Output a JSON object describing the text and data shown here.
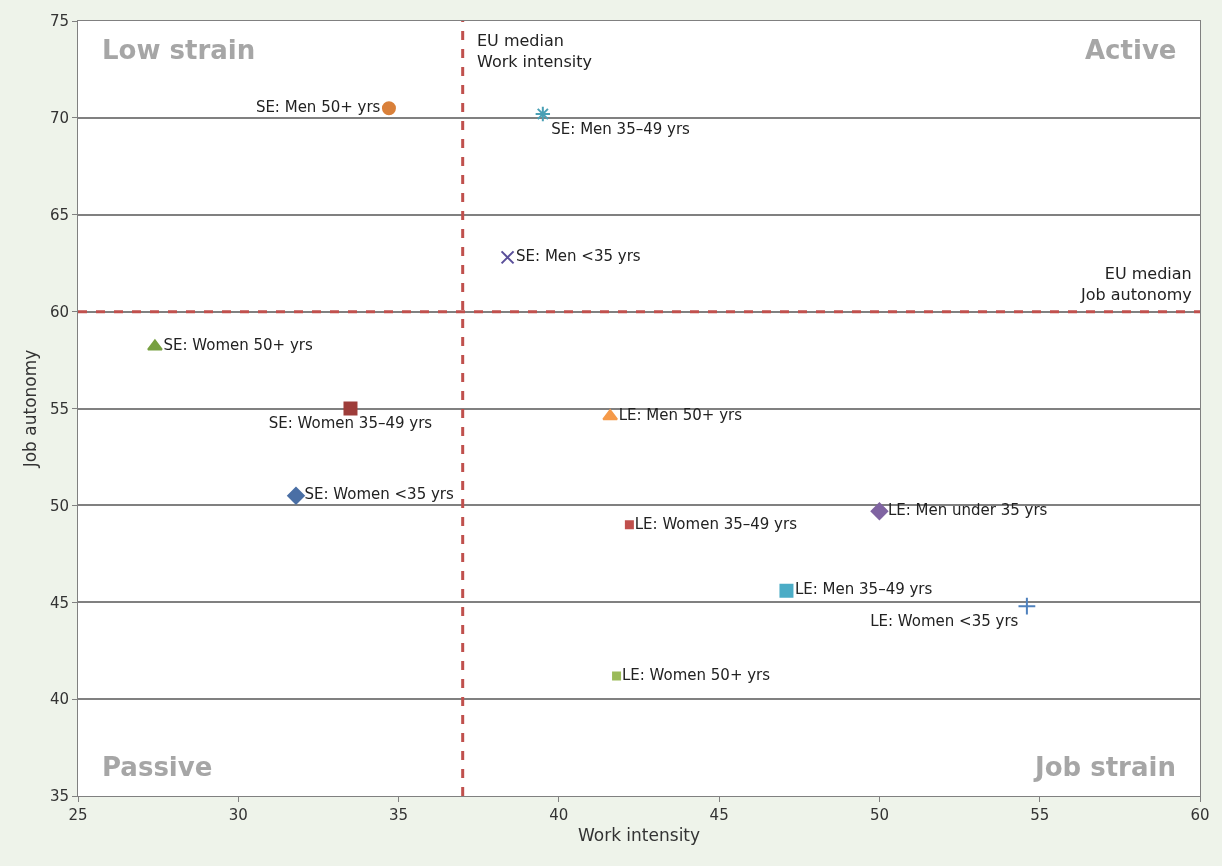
{
  "chart_data": {
    "type": "scatter",
    "xlabel": "Work intensity",
    "ylabel": "Job autonomy",
    "xlim": [
      25,
      60
    ],
    "xticks": [
      25,
      30,
      35,
      40,
      45,
      50,
      55,
      60
    ],
    "ylim": [
      35,
      75
    ],
    "yticks": [
      35,
      40,
      45,
      50,
      55,
      60,
      65,
      70,
      75
    ],
    "grid": "y",
    "legend": false,
    "series": [
      {
        "name": "SE: Men 50+ yrs",
        "color": "#d9803a",
        "marker": "circle",
        "x": [
          34.7
        ],
        "values": [
          70.5
        ]
      },
      {
        "name": "SE: Men 35–49 yrs",
        "color": "#4aa0b5",
        "marker": "cross",
        "x": [
          39.5
        ],
        "values": [
          70.2
        ]
      },
      {
        "name": "SE: Men <35 yrs",
        "color": "#5a4f9a",
        "marker": "cross",
        "x": [
          38.4
        ],
        "values": [
          62.8
        ]
      },
      {
        "name": "SE: Women 50+ yrs",
        "color": "#77a040",
        "marker": "triangle",
        "x": [
          27.4
        ],
        "values": [
          58.2
        ]
      },
      {
        "name": "SE: Women 35–49 yrs",
        "color": "#9e3d3a",
        "marker": "square",
        "x": [
          33.5
        ],
        "values": [
          55.0
        ]
      },
      {
        "name": "SE: Women <35 yrs",
        "color": "#4a6fa5",
        "marker": "diamond",
        "x": [
          31.8
        ],
        "values": [
          50.5
        ]
      },
      {
        "name": "LE: Men 50+ yrs",
        "color": "#f59a4a",
        "marker": "triangle",
        "x": [
          41.6
        ],
        "values": [
          54.6
        ]
      },
      {
        "name": "LE: Women 35–49 yrs",
        "color": "#c0504d",
        "marker": "square",
        "x": [
          42.2
        ],
        "values": [
          49.0
        ]
      },
      {
        "name": "LE: Men under 35 yrs",
        "color": "#8064a2",
        "marker": "diamond",
        "x": [
          50.0
        ],
        "values": [
          49.7
        ]
      },
      {
        "name": "LE: Men 35–49 yrs",
        "color": "#4bacc6",
        "marker": "square",
        "x": [
          47.1
        ],
        "values": [
          45.6
        ]
      },
      {
        "name": "LE: Women <35 yrs",
        "color": "#4f81bd",
        "marker": "cross",
        "x": [
          54.6
        ],
        "values": [
          44.8
        ]
      },
      {
        "name": "LE: Women 50+ yrs",
        "color": "#9bbb59",
        "marker": "square",
        "x": [
          41.8
        ],
        "values": [
          41.2
        ]
      }
    ],
    "ref_lines": [
      {
        "axis": "x",
        "value": 37.0,
        "label": "EU median\nWork intensity",
        "color": "#c0504d",
        "line_style": "dashed"
      },
      {
        "axis": "y",
        "value": 60,
        "label": "EU median\nJob autonomy",
        "color": "#c0504d",
        "line_style": "dashed"
      }
    ],
    "annotations": [
      "Low strain",
      "Active",
      "Passive",
      "Job strain"
    ]
  }
}
